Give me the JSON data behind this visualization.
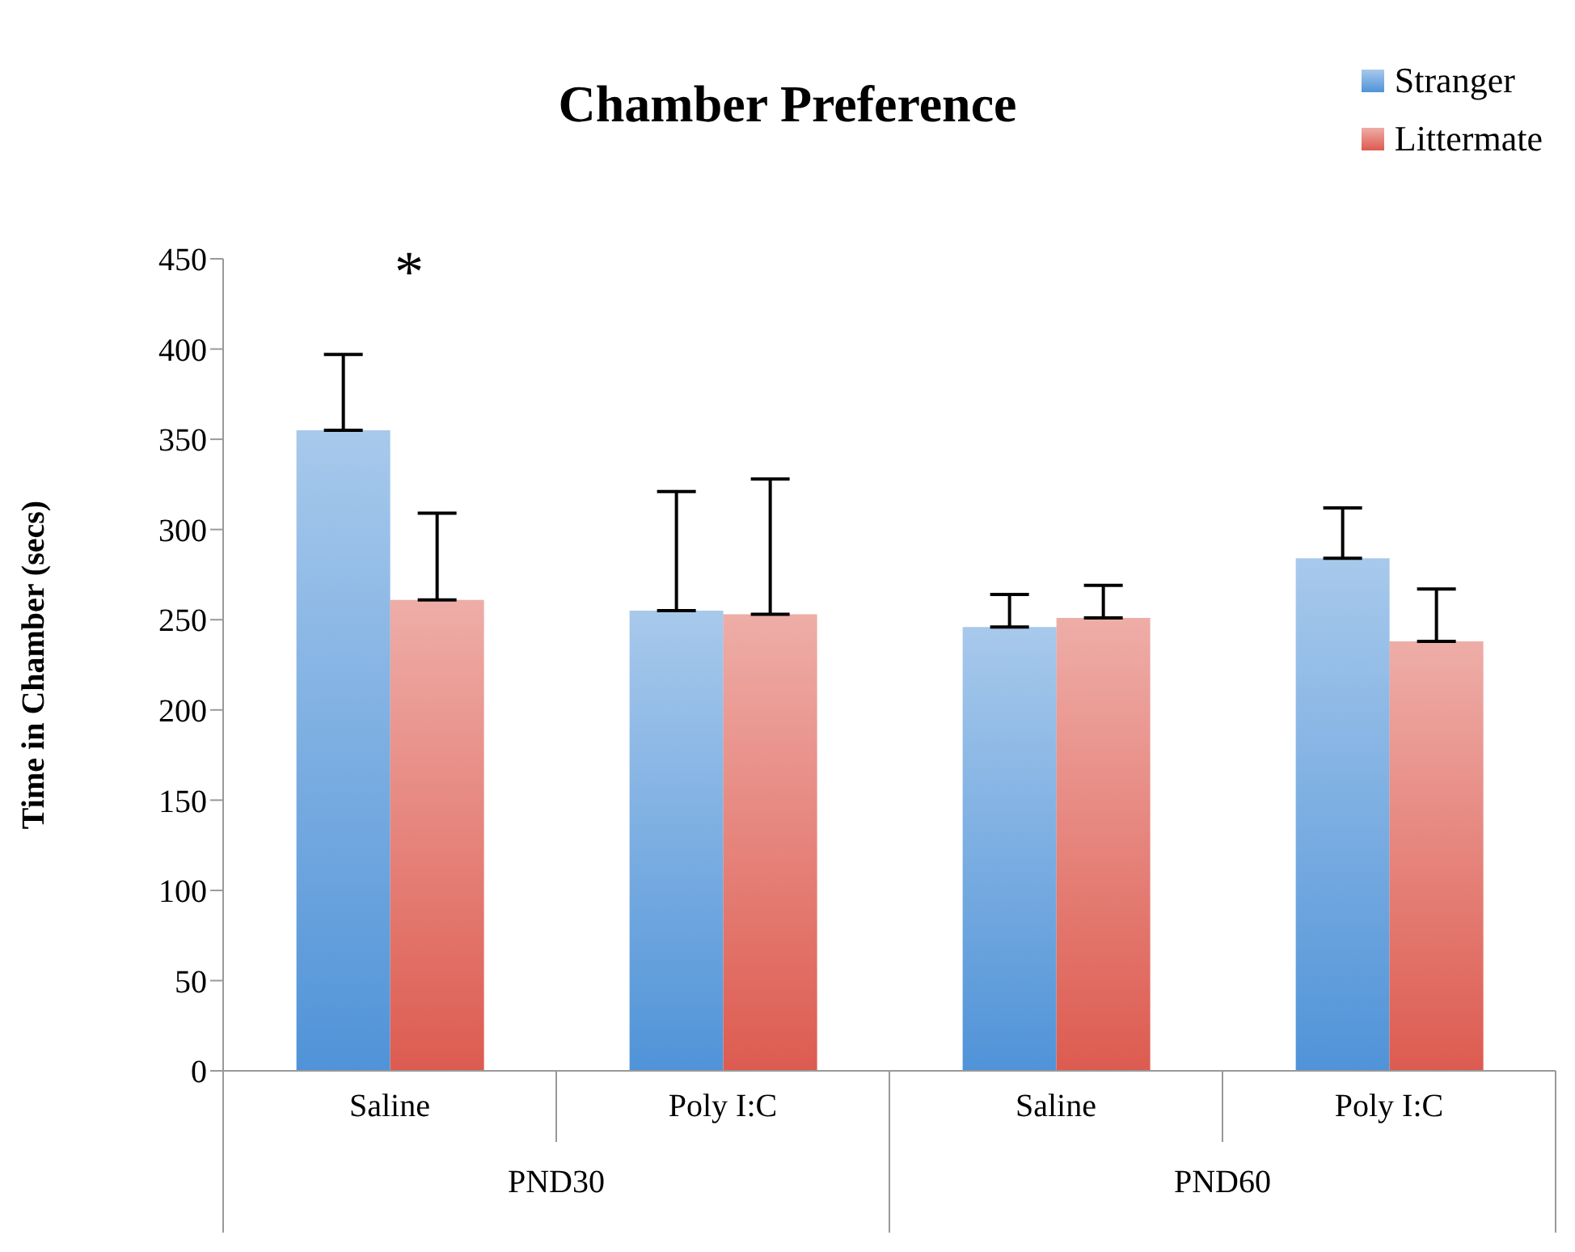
{
  "chart_data": {
    "type": "bar",
    "title": "Chamber Preference",
    "ylabel": "Time in Chamber (secs)",
    "categories": [
      "Saline",
      "Poly I:C",
      "Saline",
      "Poly I:C"
    ],
    "series": [
      {
        "name": "Stranger",
        "color": "#5093d8",
        "values": [
          355,
          255,
          246,
          284
        ],
        "errors": [
          [
            355,
            397
          ],
          [
            255,
            321
          ],
          [
            246,
            264
          ],
          [
            284,
            312
          ]
        ]
      },
      {
        "name": "Littermate",
        "color": "#dd5b50",
        "values": [
          261,
          253,
          251,
          238
        ],
        "errors": [
          [
            261,
            309
          ],
          [
            253,
            328
          ],
          [
            251,
            269
          ],
          [
            238,
            267
          ]
        ]
      }
    ],
    "ylim": [
      0,
      450
    ],
    "yticks": [
      0,
      50,
      100,
      150,
      200,
      250,
      300,
      350,
      400,
      450
    ],
    "grid": false,
    "legend": "top right",
    "annotations": [
      "*",
      "PND30",
      "PND60"
    ]
  }
}
